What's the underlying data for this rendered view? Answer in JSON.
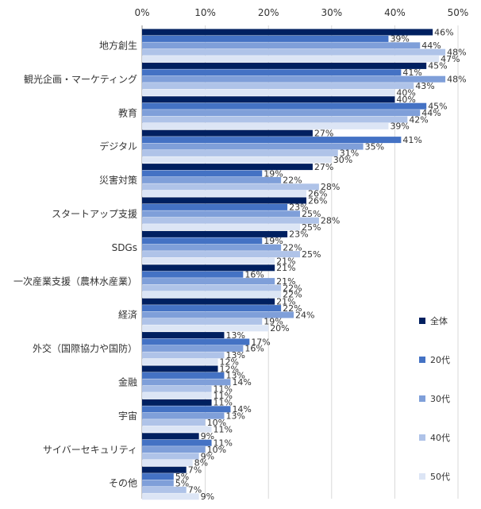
{
  "chart_data": {
    "type": "bar",
    "orientation": "horizontal",
    "categories": [
      "地方創生",
      "観光企画・マーケティング",
      "教育",
      "デジタル",
      "災害対策",
      "スタートアップ支援",
      "SDGs",
      "一次産業支援（農林水産業）",
      "経済",
      "外交（国際協力や国防）",
      "金融",
      "宇宙",
      "サイバーセキュリティ",
      "その他"
    ],
    "series": [
      {
        "name": "全体",
        "color": "#002060",
        "values": [
          46,
          45,
          40,
          27,
          27,
          26,
          23,
          21,
          21,
          13,
          12,
          11,
          9,
          7
        ]
      },
      {
        "name": "20代",
        "color": "#4472C4",
        "values": [
          39,
          41,
          45,
          41,
          19,
          23,
          19,
          16,
          22,
          17,
          13,
          14,
          11,
          5
        ]
      },
      {
        "name": "30代",
        "color": "#7F9FD9",
        "values": [
          44,
          48,
          44,
          35,
          22,
          25,
          22,
          21,
          24,
          16,
          14,
          13,
          10,
          5
        ]
      },
      {
        "name": "40代",
        "color": "#AFC3E8",
        "values": [
          48,
          43,
          42,
          31,
          28,
          28,
          25,
          22,
          19,
          13,
          11,
          10,
          9,
          7
        ]
      },
      {
        "name": "50代",
        "color": "#DCE5F5",
        "values": [
          47,
          40,
          39,
          30,
          26,
          25,
          21,
          22,
          20,
          12,
          11,
          11,
          8,
          9
        ]
      }
    ],
    "xlim": [
      0,
      50
    ],
    "x_ticks": [
      "0%",
      "10%",
      "20%",
      "30%",
      "40%",
      "50%"
    ],
    "value_suffix": "%",
    "legend_position": "right",
    "grid": true
  }
}
